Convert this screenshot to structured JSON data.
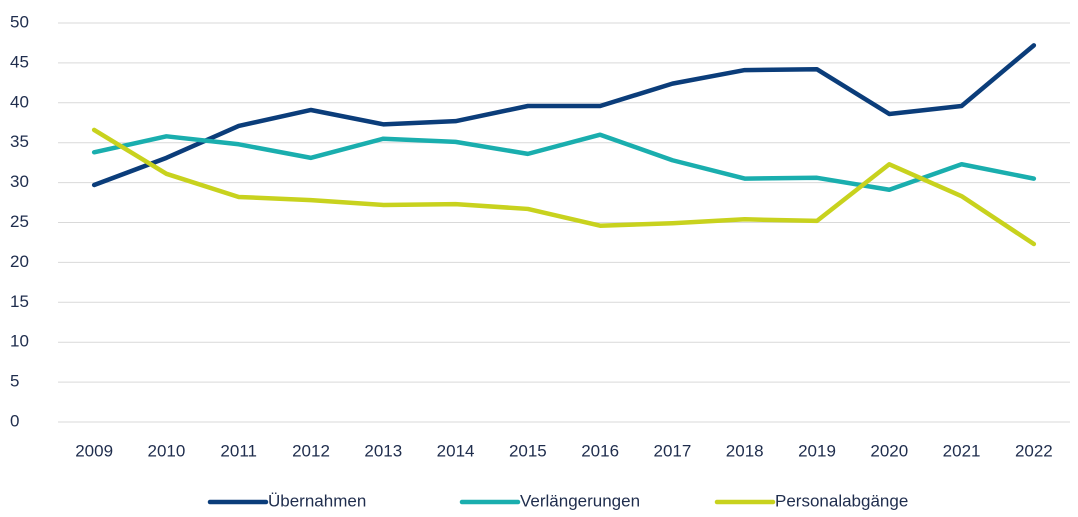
{
  "chart_data": {
    "type": "line",
    "categories": [
      "2009",
      "2010",
      "2011",
      "2012",
      "2013",
      "2014",
      "2015",
      "2016",
      "2017",
      "2018",
      "2019",
      "2020",
      "2021",
      "2022"
    ],
    "series": [
      {
        "name": "Übernahmen",
        "color": "#0b3d7a",
        "values": [
          29.7,
          33.1,
          37.1,
          39.1,
          37.3,
          37.7,
          39.6,
          39.6,
          42.4,
          44.1,
          44.2,
          38.6,
          39.6,
          47.2
        ]
      },
      {
        "name": "Verlängerungen",
        "color": "#1aaeae",
        "values": [
          33.8,
          35.8,
          34.8,
          33.1,
          35.5,
          35.1,
          33.6,
          36.0,
          32.8,
          30.5,
          30.6,
          29.1,
          32.3,
          30.5
        ]
      },
      {
        "name": "Personalabgänge",
        "color": "#c8d21e",
        "values": [
          36.6,
          31.1,
          28.2,
          27.8,
          27.2,
          27.3,
          26.7,
          24.6,
          24.9,
          25.4,
          25.2,
          32.3,
          28.3,
          22.3
        ]
      }
    ],
    "ylim": [
      0,
      50
    ],
    "yticks": [
      0,
      5,
      10,
      15,
      20,
      25,
      30,
      35,
      40,
      45,
      50
    ],
    "grid": true,
    "legend": "bottom"
  }
}
